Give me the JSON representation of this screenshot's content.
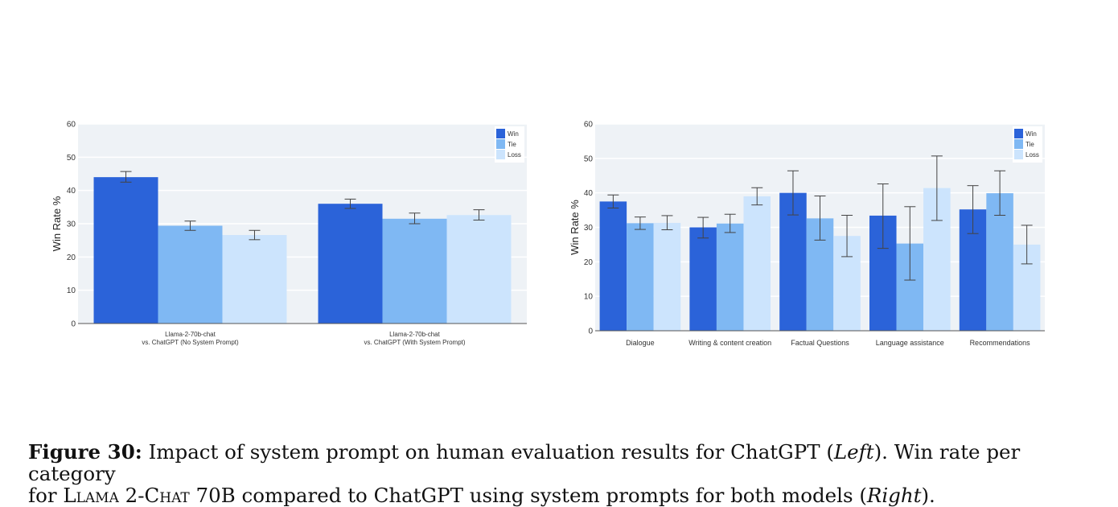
{
  "colors": {
    "win": "#2b63d9",
    "tie": "#7fb8f3",
    "loss": "#cce4fd",
    "plot_bg": "#eef2f6",
    "grid": "#ffffff",
    "error": "#444444"
  },
  "chart_data": [
    {
      "type": "bar",
      "ylabel": "Win Rate %",
      "xlabel": "",
      "ylim": [
        0,
        60
      ],
      "yticks": [
        0,
        10,
        20,
        30,
        40,
        50,
        60
      ],
      "grid": true,
      "legend_position": "top-right",
      "categories": [
        [
          "Llama-2-70b-chat",
          "vs. ChatGPT (No System Prompt)"
        ],
        [
          "Llama-2-70b-chat",
          "vs. ChatGPT (With System Prompt)"
        ]
      ],
      "series": [
        {
          "name": "Win",
          "values": [
            44,
            36
          ],
          "error_low": [
            42.5,
            34.6
          ],
          "error_high": [
            45.7,
            37.4
          ]
        },
        {
          "name": "Tie",
          "values": [
            29.4,
            31.5
          ],
          "error_low": [
            28,
            30
          ],
          "error_high": [
            30.8,
            33.2
          ]
        },
        {
          "name": "Loss",
          "values": [
            26.6,
            32.6
          ],
          "error_low": [
            25.2,
            31.1
          ],
          "error_high": [
            28,
            34.2
          ]
        }
      ]
    },
    {
      "type": "bar",
      "ylabel": "Win Rate %",
      "xlabel": "",
      "ylim": [
        0,
        60
      ],
      "yticks": [
        0,
        10,
        20,
        30,
        40,
        50,
        60
      ],
      "grid": true,
      "legend_position": "top-right",
      "categories": [
        "Dialogue",
        "Writing & content creation",
        "Factual Questions",
        "Language assistance",
        "Recommendations"
      ],
      "series": [
        {
          "name": "Win",
          "values": [
            37.5,
            30,
            40,
            33.4,
            35.2
          ],
          "error_low": [
            35.6,
            26.9,
            33.6,
            23.9,
            28.2
          ],
          "error_high": [
            39.4,
            32.9,
            46.4,
            42.6,
            42.1
          ]
        },
        {
          "name": "Tie",
          "values": [
            31.2,
            31.1,
            32.6,
            25.3,
            39.9
          ],
          "error_low": [
            29.4,
            28.5,
            26.3,
            14.7,
            33.5
          ],
          "error_high": [
            33,
            33.8,
            39.1,
            36,
            46.4
          ]
        },
        {
          "name": "Loss",
          "values": [
            31.3,
            39,
            27.5,
            41.4,
            25
          ],
          "error_low": [
            29.3,
            36.5,
            21.5,
            32,
            19.4
          ],
          "error_high": [
            33.4,
            41.5,
            33.5,
            50.7,
            30.6
          ]
        }
      ]
    }
  ],
  "caption": {
    "label": "Figure 30:",
    "line1_text": " Impact of system prompt on human evaluation results for ChatGPT (",
    "left_italic": "Left",
    "line1_after": "). Win rate per category",
    "line2_prefix": "for ",
    "model_name": "Llama 2-Chat",
    "line2_text": " 70B compared to ChatGPT using system prompts for both models (",
    "right_italic": "Right",
    "line2_after": ")."
  }
}
